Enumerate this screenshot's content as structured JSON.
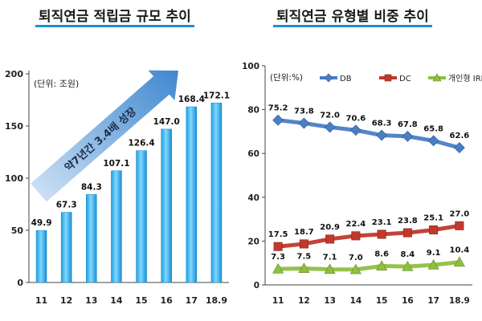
{
  "titles": {
    "left": "퇴직연금 적립금 규모 추이",
    "right": "퇴직연금 유형별 비중 추이"
  },
  "chart_data": [
    {
      "type": "bar",
      "title": "퇴직연금 적립금 규모 추이",
      "unit_label": "(단위: 조원)",
      "categories": [
        "11",
        "12",
        "13",
        "14",
        "15",
        "16",
        "17",
        "18.9"
      ],
      "values": [
        49.9,
        67.3,
        84.3,
        107.1,
        126.4,
        147.0,
        168.4,
        172.1
      ],
      "value_labels": [
        "49.9",
        "67.3",
        "84.3",
        "107.1",
        "126.4",
        "147.0",
        "168.4",
        "172.1"
      ],
      "ylim": [
        0,
        200
      ],
      "yticks": [
        0,
        50,
        100,
        150,
        200
      ],
      "annotation": "약7년간 3.4배 성장",
      "bar_color": "#29b6f0",
      "arrow_color": "#3e86c8"
    },
    {
      "type": "line",
      "title": "퇴직연금 유형별 비중 추이",
      "unit_label": "(단위:%)",
      "categories": [
        "11",
        "12",
        "13",
        "14",
        "15",
        "16",
        "17",
        "18.9"
      ],
      "ylim": [
        0,
        100
      ],
      "yticks": [
        0,
        20,
        40,
        60,
        80,
        100
      ],
      "legend_position": "top",
      "series": [
        {
          "name": "DB",
          "values": [
            75.2,
            73.8,
            72.0,
            70.6,
            68.3,
            67.8,
            65.8,
            62.6
          ],
          "labels": [
            "75.2",
            "73.8",
            "72.0",
            "70.6",
            "68.3",
            "67.8",
            "65.8",
            "62.6"
          ],
          "color": "#4a7ec4",
          "marker": "diamond"
        },
        {
          "name": "DC",
          "values": [
            17.5,
            18.7,
            20.9,
            22.4,
            23.1,
            23.8,
            25.1,
            27.0
          ],
          "labels": [
            "17.5",
            "18.7",
            "20.9",
            "22.4",
            "23.1",
            "23.8",
            "25.1",
            "27.0"
          ],
          "color": "#c0392b",
          "marker": "square"
        },
        {
          "name": "개인형 IRP",
          "values": [
            7.3,
            7.5,
            7.1,
            7.0,
            8.6,
            8.4,
            9.1,
            10.4
          ],
          "labels": [
            "7.3",
            "7.5",
            "7.1",
            "7.0",
            "8.6",
            "8.4",
            "9.1",
            "10.4"
          ],
          "color": "#8fbf3f",
          "marker": "triangle"
        }
      ]
    }
  ]
}
